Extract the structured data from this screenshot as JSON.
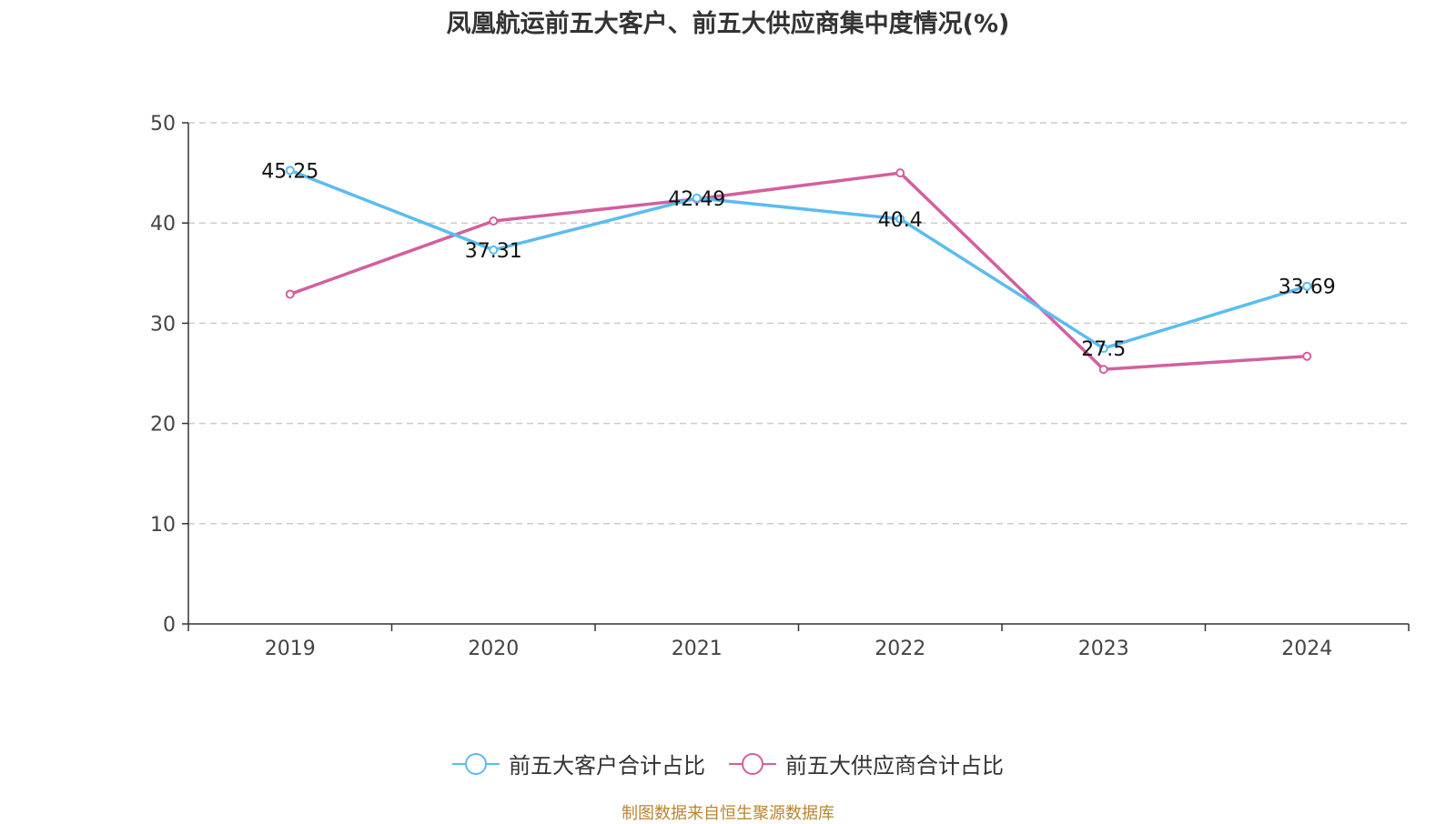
{
  "title": "凤凰航运前五大客户、前五大供应商集中度情况(%)",
  "source": "制图数据来自恒生聚源数据库",
  "chart_data": {
    "type": "line",
    "title": "凤凰航运前五大客户、前五大供应商集中度情况(%)",
    "categories": [
      "2019",
      "2020",
      "2021",
      "2022",
      "2023",
      "2024"
    ],
    "ylim": [
      0,
      50
    ],
    "yticks": [
      0,
      10,
      20,
      30,
      40,
      50
    ],
    "grid": true,
    "legend_position": "bottom",
    "series": [
      {
        "name": "前五大客户合计占比",
        "color": "#5bbcf0",
        "values": [
          45.25,
          37.31,
          42.49,
          40.4,
          27.5,
          33.69
        ],
        "labels": [
          "45.25",
          "37.31",
          "42.49",
          "40.4",
          "27.5",
          "33.69"
        ]
      },
      {
        "name": "前五大供应商合计占比",
        "color": "#d2609f",
        "values": [
          32.9,
          40.2,
          42.4,
          45.0,
          25.4,
          26.7
        ]
      }
    ]
  }
}
